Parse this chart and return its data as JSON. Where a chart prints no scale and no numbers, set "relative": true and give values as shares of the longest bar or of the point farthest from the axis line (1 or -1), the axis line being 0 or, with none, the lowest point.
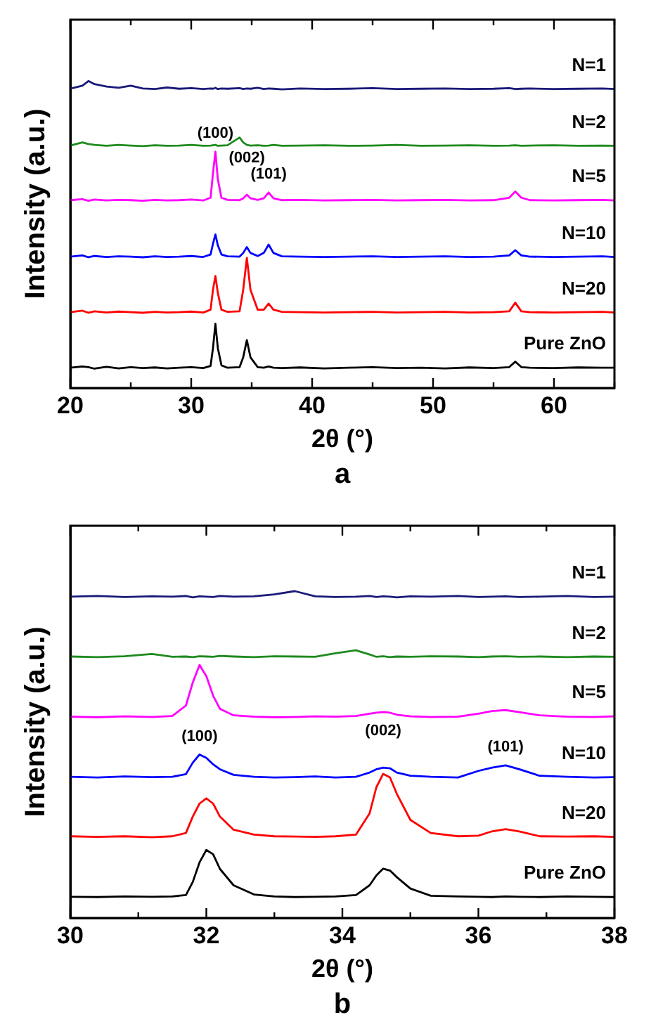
{
  "chart_data": [
    {
      "type": "line",
      "relative": true,
      "xlabel": "2θ (°)",
      "ylabel": "Intensity (a.u.)",
      "xlim": [
        20,
        65
      ],
      "xticks": [
        20,
        {
          "value": 25,
          "label": null
        },
        30,
        {
          "value": 35,
          "label": null
        },
        40,
        {
          "value": 45,
          "label": null
        },
        50,
        {
          "value": 55,
          "label": null
        },
        60,
        {
          "value": 65,
          "label": null
        }
      ],
      "x": [
        20,
        21,
        21.5,
        22,
        23,
        24,
        25,
        26,
        27,
        28,
        29,
        30,
        31,
        31.6,
        31.8,
        32,
        32.2,
        32.5,
        33,
        34,
        34.3,
        34.6,
        34.9,
        35.5,
        36,
        36.4,
        36.8,
        37.5,
        39,
        41,
        43,
        45,
        47,
        49,
        51,
        53,
        55,
        56.3,
        56.8,
        57.3,
        58,
        60,
        62,
        64,
        65
      ],
      "series": [
        {
          "name": "N=1",
          "color": "#1a1a7a",
          "values": [
            0.975,
            0.985,
            1.0,
            0.99,
            0.982,
            0.978,
            0.985,
            0.976,
            0.974,
            0.979,
            0.975,
            0.977,
            0.974,
            0.976,
            0.975,
            0.978,
            0.974,
            0.976,
            0.975,
            0.977,
            0.974,
            0.976,
            0.975,
            0.978,
            0.974,
            0.976,
            0.975,
            0.973,
            0.976,
            0.974,
            0.975,
            0.977,
            0.974,
            0.975,
            0.976,
            0.974,
            0.975,
            0.977,
            0.974,
            0.975,
            0.976,
            0.974,
            0.975,
            0.976,
            0.974
          ]
        },
        {
          "name": "N=2",
          "color": "#1f8a1f",
          "values": [
            0.79,
            0.8,
            0.795,
            0.792,
            0.789,
            0.792,
            0.79,
            0.788,
            0.791,
            0.789,
            0.79,
            0.792,
            0.789,
            0.79,
            0.791,
            0.792,
            0.789,
            0.79,
            0.791,
            0.816,
            0.8,
            0.792,
            0.79,
            0.791,
            0.789,
            0.79,
            0.792,
            0.789,
            0.79,
            0.791,
            0.789,
            0.79,
            0.792,
            0.789,
            0.79,
            0.791,
            0.789,
            0.79,
            0.791,
            0.789,
            0.79,
            0.791,
            0.789,
            0.79,
            0.789
          ]
        },
        {
          "name": "N=5",
          "color": "#ff00ff",
          "values": [
            0.612,
            0.615,
            0.61,
            0.614,
            0.611,
            0.613,
            0.612,
            0.61,
            0.613,
            0.611,
            0.612,
            0.614,
            0.611,
            0.62,
            0.7,
            0.77,
            0.68,
            0.62,
            0.613,
            0.612,
            0.618,
            0.63,
            0.618,
            0.613,
            0.618,
            0.637,
            0.618,
            0.612,
            0.613,
            0.611,
            0.612,
            0.613,
            0.611,
            0.612,
            0.613,
            0.611,
            0.612,
            0.62,
            0.64,
            0.62,
            0.612,
            0.611,
            0.612,
            0.613,
            0.611
          ]
        },
        {
          "name": "N=10",
          "color": "#0000ff",
          "values": [
            0.428,
            0.432,
            0.426,
            0.43,
            0.427,
            0.429,
            0.428,
            0.426,
            0.429,
            0.427,
            0.428,
            0.43,
            0.427,
            0.435,
            0.47,
            0.5,
            0.465,
            0.435,
            0.429,
            0.428,
            0.44,
            0.459,
            0.44,
            0.43,
            0.44,
            0.467,
            0.44,
            0.429,
            0.428,
            0.427,
            0.428,
            0.429,
            0.427,
            0.428,
            0.429,
            0.427,
            0.428,
            0.432,
            0.449,
            0.432,
            0.428,
            0.427,
            0.428,
            0.429,
            0.427
          ]
        },
        {
          "name": "N=20",
          "color": "#ff0000",
          "values": [
            0.247,
            0.252,
            0.245,
            0.25,
            0.246,
            0.249,
            0.247,
            0.245,
            0.248,
            0.246,
            0.247,
            0.249,
            0.246,
            0.255,
            0.32,
            0.365,
            0.31,
            0.255,
            0.248,
            0.25,
            0.32,
            0.424,
            0.32,
            0.255,
            0.255,
            0.275,
            0.255,
            0.248,
            0.247,
            0.246,
            0.247,
            0.248,
            0.246,
            0.247,
            0.248,
            0.246,
            0.247,
            0.25,
            0.278,
            0.25,
            0.247,
            0.246,
            0.247,
            0.248,
            0.246
          ]
        },
        {
          "name": "Pure ZnO",
          "color": "#000000",
          "values": [
            0.066,
            0.07,
            0.068,
            0.063,
            0.069,
            0.064,
            0.068,
            0.065,
            0.067,
            0.064,
            0.066,
            0.068,
            0.065,
            0.072,
            0.13,
            0.209,
            0.13,
            0.074,
            0.066,
            0.068,
            0.1,
            0.156,
            0.1,
            0.068,
            0.066,
            0.07,
            0.066,
            0.065,
            0.067,
            0.064,
            0.066,
            0.068,
            0.065,
            0.066,
            0.064,
            0.067,
            0.065,
            0.068,
            0.086,
            0.068,
            0.066,
            0.065,
            0.067,
            0.066,
            0.066
          ]
        }
      ],
      "annotations": [
        {
          "text": "(100)",
          "x": 32,
          "y": 0.77
        },
        {
          "text": "(002)",
          "x": 34.6,
          "y": 0.63
        },
        {
          "text": "(101)",
          "x": 36.4,
          "y": 0.637
        },
        "a"
      ]
    },
    {
      "type": "line",
      "relative": true,
      "xlabel": "2θ (°)",
      "ylabel": "Intensity (a.u.)",
      "xlim": [
        30,
        38
      ],
      "xticks": [
        30,
        {
          "value": 31,
          "label": null
        },
        32,
        {
          "value": 33,
          "label": null
        },
        34,
        {
          "value": 35,
          "label": null
        },
        36,
        {
          "value": 37,
          "label": null
        },
        38
      ],
      "x": [
        30,
        30.4,
        30.8,
        31.2,
        31.5,
        31.7,
        31.8,
        31.9,
        32,
        32.1,
        32.2,
        32.4,
        32.7,
        33,
        33.3,
        33.6,
        33.9,
        34.2,
        34.4,
        34.5,
        34.6,
        34.7,
        34.8,
        35,
        35.3,
        35.7,
        36,
        36.2,
        36.4,
        36.6,
        36.9,
        37.3,
        37.7,
        38
      ],
      "series": [
        {
          "name": "N=1",
          "color": "#1a1a7a",
          "values": [
            0.983,
            0.985,
            0.982,
            0.984,
            0.983,
            0.985,
            0.981,
            0.984,
            0.983,
            0.982,
            0.985,
            0.983,
            0.984,
            0.99,
            1.0,
            0.984,
            0.982,
            0.983,
            0.985,
            0.982,
            0.984,
            0.983,
            0.981,
            0.984,
            0.983,
            0.985,
            0.982,
            0.983,
            0.984,
            0.982,
            0.983,
            0.985,
            0.982,
            0.983
          ]
        },
        {
          "name": "N=2",
          "color": "#1f8a1f",
          "values": [
            0.8,
            0.798,
            0.801,
            0.808,
            0.799,
            0.8,
            0.798,
            0.801,
            0.8,
            0.799,
            0.802,
            0.8,
            0.798,
            0.801,
            0.8,
            0.799,
            0.81,
            0.819,
            0.806,
            0.799,
            0.801,
            0.798,
            0.8,
            0.799,
            0.801,
            0.8,
            0.798,
            0.8,
            0.801,
            0.799,
            0.8,
            0.798,
            0.8,
            0.799
          ]
        },
        {
          "name": "N=5",
          "color": "#ff00ff",
          "values": [
            0.616,
            0.614,
            0.617,
            0.615,
            0.618,
            0.65,
            0.72,
            0.774,
            0.74,
            0.68,
            0.64,
            0.62,
            0.616,
            0.614,
            0.615,
            0.617,
            0.616,
            0.618,
            0.625,
            0.628,
            0.63,
            0.628,
            0.622,
            0.617,
            0.615,
            0.616,
            0.625,
            0.633,
            0.636,
            0.63,
            0.62,
            0.616,
            0.615,
            0.617
          ]
        },
        {
          "name": "N=10",
          "color": "#0000ff",
          "values": [
            0.432,
            0.43,
            0.433,
            0.431,
            0.432,
            0.44,
            0.475,
            0.5,
            0.49,
            0.47,
            0.455,
            0.438,
            0.432,
            0.43,
            0.431,
            0.433,
            0.43,
            0.432,
            0.445,
            0.455,
            0.46,
            0.458,
            0.445,
            0.435,
            0.432,
            0.43,
            0.45,
            0.46,
            0.467,
            0.455,
            0.435,
            0.432,
            0.43,
            0.431
          ]
        },
        {
          "name": "N=20",
          "color": "#ff0000",
          "values": [
            0.25,
            0.248,
            0.25,
            0.247,
            0.25,
            0.26,
            0.31,
            0.35,
            0.366,
            0.35,
            0.31,
            0.27,
            0.255,
            0.25,
            0.249,
            0.248,
            0.25,
            0.255,
            0.32,
            0.4,
            0.441,
            0.43,
            0.38,
            0.3,
            0.26,
            0.25,
            0.252,
            0.265,
            0.272,
            0.265,
            0.25,
            0.249,
            0.25,
            0.248
          ]
        },
        {
          "name": "Pure ZnO",
          "color": "#000000",
          "values": [
            0.065,
            0.064,
            0.066,
            0.065,
            0.066,
            0.07,
            0.11,
            0.17,
            0.208,
            0.195,
            0.15,
            0.1,
            0.072,
            0.066,
            0.064,
            0.065,
            0.066,
            0.07,
            0.1,
            0.13,
            0.151,
            0.145,
            0.125,
            0.09,
            0.068,
            0.066,
            0.065,
            0.064,
            0.066,
            0.065,
            0.064,
            0.066,
            0.065,
            0.064
          ]
        }
      ],
      "annotations": [
        {
          "text": "(100)",
          "x": 31.9,
          "y": 0.5
        },
        {
          "text": "(002)",
          "x": 34.6,
          "y": 0.46
        },
        {
          "text": "(101)",
          "x": 36.4,
          "y": 0.467
        },
        "b"
      ]
    }
  ]
}
